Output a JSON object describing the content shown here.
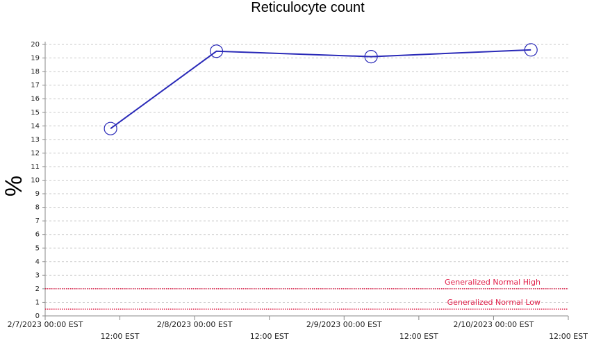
{
  "chart_data": {
    "type": "line",
    "title": "Reticulocyte count",
    "y_label": "%",
    "x": [
      "2023-02-07T10:30",
      "2023-02-08T03:30",
      "2023-02-09T04:20",
      "2023-02-10T06:00"
    ],
    "series": [
      {
        "name": "Reticulocyte count",
        "color": "#2a2ab8",
        "values": [
          13.8,
          19.5,
          19.1,
          19.6
        ]
      }
    ],
    "xlim": [
      "2023-02-07T00:00",
      "2023-02-10T12:00"
    ],
    "xticks": [
      {
        "value": "2023-02-07T00:00",
        "label": "2/7/2023 00:00 EST"
      },
      {
        "value": "2023-02-07T12:00",
        "label": "12:00 EST"
      },
      {
        "value": "2023-02-08T00:00",
        "label": "2/8/2023 00:00 EST"
      },
      {
        "value": "2023-02-08T12:00",
        "label": "12:00 EST"
      },
      {
        "value": "2023-02-09T00:00",
        "label": "2/9/2023 00:00 EST"
      },
      {
        "value": "2023-02-09T12:00",
        "label": "12:00 EST"
      },
      {
        "value": "2023-02-10T00:00",
        "label": "2/10/2023 00:00 EST"
      },
      {
        "value": "2023-02-10T12:00",
        "label": "12:00 EST"
      }
    ],
    "ylim": [
      0,
      20
    ],
    "yticks": [
      0,
      1,
      2,
      3,
      4,
      5,
      6,
      7,
      8,
      9,
      10,
      11,
      12,
      13,
      14,
      15,
      16,
      17,
      18,
      19,
      20
    ],
    "grid": true,
    "reference_lines": [
      {
        "label": "Generalized Normal High",
        "value": 2,
        "color": "#e0204a"
      },
      {
        "label": "Generalized Normal Low",
        "value": 0.5,
        "color": "#e0204a"
      }
    ]
  }
}
